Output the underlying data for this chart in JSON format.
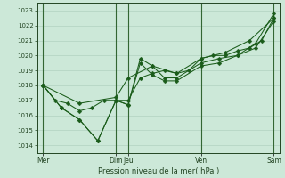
{
  "xlabel": "Pression niveau de la mer( hPa )",
  "bg_color": "#cce8d8",
  "grid_color": "#aaccbb",
  "line_color": "#1a5c1a",
  "vline_color": "#336633",
  "spine_color": "#224422",
  "ylim": [
    1013.5,
    1023.5
  ],
  "yticks": [
    1014,
    1015,
    1016,
    1017,
    1018,
    1019,
    1020,
    1021,
    1022,
    1023
  ],
  "ytick_fontsize": 5.0,
  "xtick_fontsize": 5.5,
  "xlabel_fontsize": 6.0,
  "xlim": [
    0,
    20
  ],
  "xtick_positions": [
    0.5,
    6.5,
    7.5,
    13.5,
    19.5
  ],
  "xtick_labels": [
    "Mer",
    "Dim",
    "Jeu",
    "Ven",
    "Sam"
  ],
  "vlines_x": [
    0.5,
    6.5,
    7.5,
    13.5,
    19.5
  ],
  "line1_x": [
    0.5,
    1.5,
    2.5,
    3.5,
    4.5,
    5.5,
    6.5,
    7.5,
    8.5,
    9.5,
    10.5,
    11.5,
    12.5,
    13.5,
    14.5,
    15.5,
    16.5,
    17.5,
    18.5,
    19.5
  ],
  "line1_y": [
    1018,
    1017,
    1016.8,
    1016.3,
    1016.5,
    1017.0,
    1017.0,
    1017.0,
    1018.5,
    1018.8,
    1019.0,
    1018.8,
    1019.0,
    1019.8,
    1020.0,
    1020.0,
    1020.3,
    1020.5,
    1021.0,
    1022.5
  ],
  "line2_x": [
    0.5,
    2.0,
    3.5,
    5.0,
    6.5,
    7.5,
    8.5,
    9.5,
    10.5,
    11.5,
    13.5,
    15.0,
    16.5,
    18.0,
    19.5
  ],
  "line2_y": [
    1018,
    1016.5,
    1015.7,
    1014.3,
    1017.0,
    1016.7,
    1019.8,
    1019.3,
    1018.5,
    1018.5,
    1019.5,
    1019.8,
    1020.0,
    1020.8,
    1022.8
  ],
  "line3_x": [
    0.5,
    2.0,
    3.5,
    5.0,
    6.5,
    7.5,
    8.5,
    9.5,
    10.5,
    11.5,
    13.5,
    15.0,
    16.5,
    18.0,
    19.5
  ],
  "line3_y": [
    1018,
    1016.5,
    1015.7,
    1014.3,
    1017.0,
    1016.7,
    1019.5,
    1018.7,
    1018.3,
    1018.3,
    1019.3,
    1019.5,
    1020.0,
    1020.5,
    1022.3
  ],
  "line4_x": [
    0.5,
    3.5,
    6.5,
    7.5,
    9.5,
    11.5,
    13.5,
    15.5,
    17.5,
    19.5
  ],
  "line4_y": [
    1018,
    1016.8,
    1017.2,
    1018.5,
    1019.3,
    1018.8,
    1019.8,
    1020.2,
    1021.0,
    1022.5
  ],
  "lw": 0.75,
  "ms": 2.5
}
